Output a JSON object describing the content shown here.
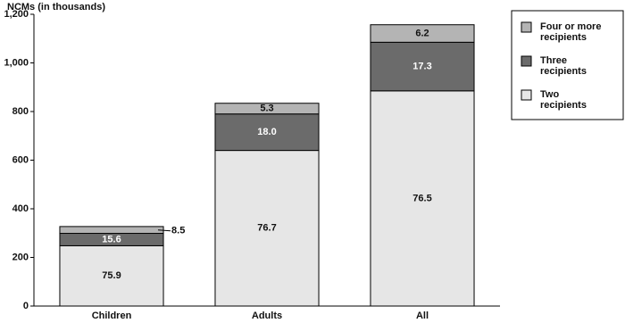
{
  "chart_data": {
    "type": "stacked_bar",
    "y_label": "NCMs (in thousands)",
    "categories": [
      "Children",
      "Adults",
      "All"
    ],
    "series": [
      {
        "name": "Two recipients",
        "color": "#e6e6e6",
        "values": [
          248,
          640,
          885
        ],
        "shares": [
          75.9,
          76.7,
          76.5
        ]
      },
      {
        "name": "Three recipients",
        "color": "#6b6b6b",
        "values": [
          51,
          150,
          200
        ],
        "shares": [
          15.6,
          18.0,
          17.3
        ],
        "share_labels": [
          "15.6",
          "18.0",
          "17.3"
        ]
      },
      {
        "name": "Four or more recipients",
        "color": "#b4b4b4",
        "values": [
          28,
          44,
          72
        ],
        "shares": [
          8.5,
          5.3,
          6.2
        ]
      }
    ],
    "ylim": [
      0,
      1200
    ],
    "yticks": [
      0,
      200,
      400,
      600,
      800,
      {
        "value": 1000,
        "label": "1,000"
      },
      {
        "value": 1200,
        "label": "1,200"
      }
    ],
    "grid": false,
    "legend": "right"
  }
}
